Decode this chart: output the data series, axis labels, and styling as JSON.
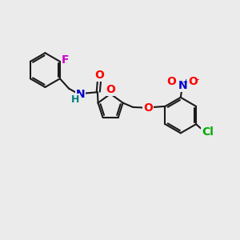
{
  "bg_color": "#ebebeb",
  "bond_color": "#1a1a1a",
  "bond_width": 1.5,
  "atom_colors": {
    "O": "#ff0000",
    "N": "#0000cc",
    "F": "#cc00cc",
    "Cl": "#00aa00",
    "H": "#008080",
    "C": "#1a1a1a"
  },
  "font_size": 9,
  "fig_bg": "#ebebeb"
}
